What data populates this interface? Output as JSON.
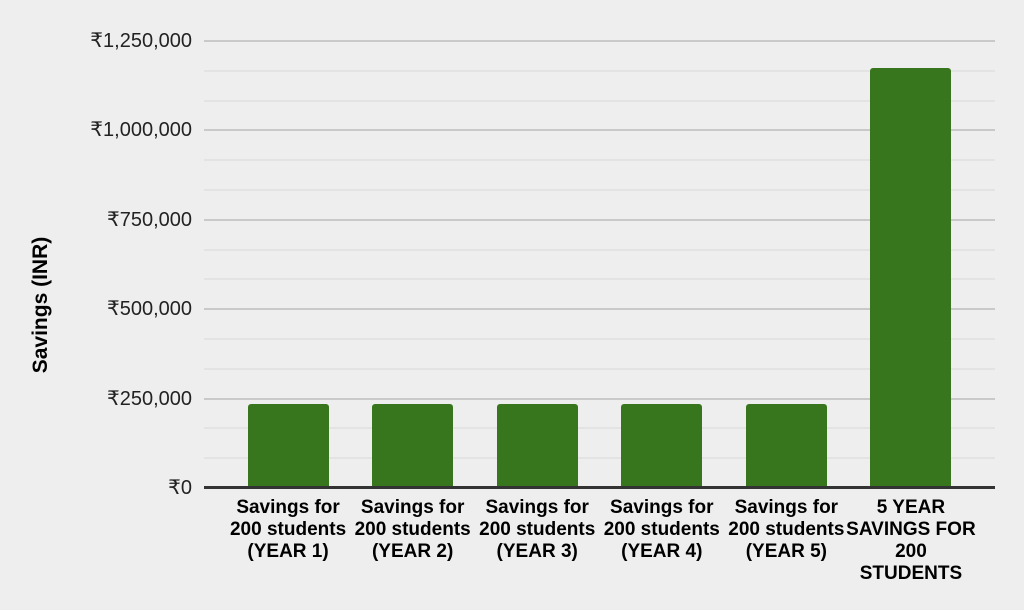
{
  "page": {
    "background_color": "#eeeeee"
  },
  "chart_data": {
    "type": "bar",
    "title": "",
    "xlabel": "",
    "ylabel": "Savings (INR)",
    "currency": "INR",
    "categories": [
      "Savings for 200 students (YEAR 1)",
      "Savings for 200 students (YEAR 2)",
      "Savings for 200 students (YEAR 3)",
      "Savings for 200 students (YEAR 4)",
      "Savings for 200 students (YEAR 5)",
      "5 YEAR SAVINGS FOR 200 STUDENTS"
    ],
    "values": [
      235000,
      235000,
      235000,
      235000,
      235000,
      1175000
    ],
    "ylim": [
      0,
      1250000
    ],
    "yticks": [
      {
        "value": 1250000,
        "label": "₹1,250,000"
      },
      {
        "value": 1000000,
        "label": "₹1,000,000"
      },
      {
        "value": 750000,
        "label": "₹750,000"
      },
      {
        "value": 500000,
        "label": "₹500,000"
      },
      {
        "value": 250000,
        "label": "₹250,000"
      },
      {
        "value": 0,
        "label": "₹0"
      }
    ],
    "grid": {
      "visible": true,
      "major_step": 250000,
      "minor_divisions": 3
    },
    "legend_position": "none",
    "colors": {
      "bar": "#38761d",
      "background": "#eeeeee",
      "major_gridline": "#c9c9c9",
      "minor_gridline": "#e3e3e3",
      "axis_line": "#333333",
      "text": "#000000"
    }
  }
}
